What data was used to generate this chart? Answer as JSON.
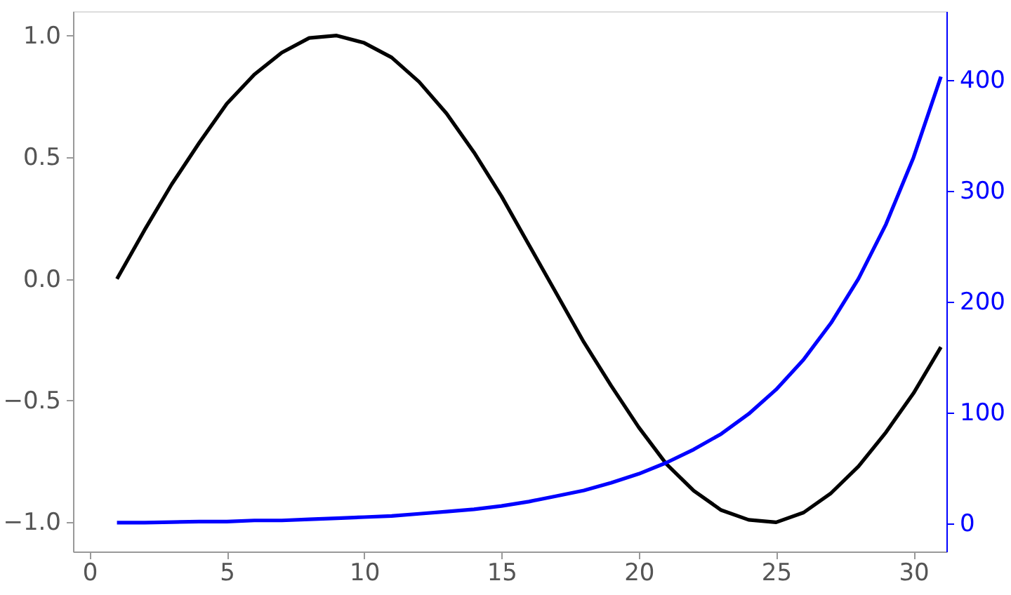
{
  "chart_data": {
    "type": "line",
    "x": [
      1,
      2,
      3,
      4,
      5,
      6,
      7,
      8,
      9,
      10,
      11,
      12,
      13,
      14,
      15,
      16,
      17,
      18,
      19,
      20,
      21,
      22,
      23,
      24,
      25,
      26,
      27,
      28,
      29,
      30,
      31
    ],
    "series": [
      {
        "color": "#000000",
        "values": [
          0.0,
          0.2,
          0.39,
          0.56,
          0.72,
          0.84,
          0.93,
          0.99,
          1.0,
          0.97,
          0.91,
          0.81,
          0.68,
          0.52,
          0.34,
          0.14,
          -0.06,
          -0.26,
          -0.44,
          -0.61,
          -0.76,
          -0.87,
          -0.95,
          -0.99,
          -1.0,
          -0.96,
          -0.88,
          -0.77,
          -0.63,
          -0.47,
          -0.28
        ]
      },
      {
        "color": "#0000ff",
        "axis": "y2",
        "values": [
          1,
          1,
          1.5,
          2,
          2,
          3,
          3,
          4,
          5,
          6,
          7,
          9,
          11,
          13,
          16,
          20,
          25,
          30,
          37,
          45,
          55,
          67,
          81,
          99,
          121,
          148,
          181,
          221,
          270,
          330,
          403
        ]
      }
    ],
    "xlim": [
      -0.6,
      31.2
    ],
    "xticks": [
      0,
      5,
      10,
      15,
      20,
      25,
      30
    ],
    "ylim": [
      -1.12,
      1.1
    ],
    "yticks": [
      {
        "value": -1.0,
        "label": "−1.0"
      },
      {
        "value": -0.5,
        "label": "−0.5"
      },
      {
        "value": 0.0,
        "label": "0.0"
      },
      {
        "value": 0.5,
        "label": "0.5"
      },
      {
        "value": 1.0,
        "label": "1.0"
      }
    ],
    "y2lim": [
      -25,
      462
    ],
    "y2ticks": [
      0,
      100,
      200,
      300,
      400
    ]
  }
}
